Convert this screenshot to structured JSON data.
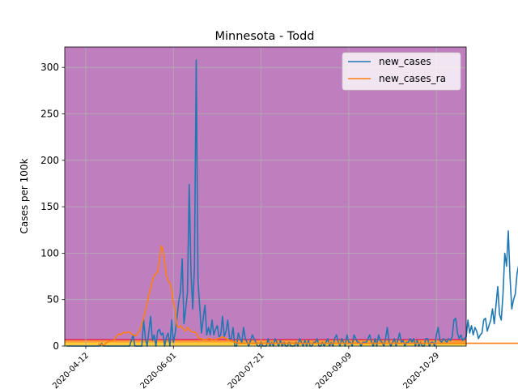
{
  "chart_data": {
    "type": "line",
    "title": "Minnesota - Todd",
    "xlabel": "",
    "ylabel": "Cases per 100k",
    "x_start": "2020-03-31",
    "x_end": "2020-11-15",
    "xlim": [
      "2020-03-31",
      "2020-11-15"
    ],
    "ylim": [
      0,
      322
    ],
    "x_ticks": [
      "2020-04-12",
      "2020-06-01",
      "2020-07-21",
      "2020-09-09",
      "2020-10-29"
    ],
    "y_ticks": [
      0,
      50,
      100,
      150,
      200,
      250,
      300
    ],
    "grid": true,
    "legend_position": "top-right",
    "background_color": "#bf7fbf",
    "risk_bands": [
      {
        "from": 0,
        "to": 1,
        "color": "#ffff66"
      },
      {
        "from": 1,
        "to": 4,
        "color": "#ffcc33"
      },
      {
        "from": 4,
        "to": 7,
        "color": "#ff9933"
      }
    ],
    "threshold_line": {
      "value": 7,
      "color": "#e0245e"
    },
    "series": [
      {
        "name": "new_cases",
        "color": "#1f77b4",
        "start_date": "2020-04-01",
        "values": [
          0,
          0,
          0,
          0,
          0,
          0,
          0,
          0,
          0,
          0,
          0,
          0,
          0,
          0,
          0,
          0,
          0,
          0,
          0,
          0,
          3,
          0,
          0,
          0,
          0,
          0,
          0,
          0,
          0,
          0,
          0,
          0,
          0,
          0,
          0,
          0,
          0,
          6,
          12,
          0,
          0,
          0,
          0,
          0,
          28,
          8,
          0,
          16,
          32,
          6,
          12,
          0,
          16,
          18,
          12,
          14,
          0,
          10,
          14,
          0,
          28,
          4,
          14,
          30,
          48,
          58,
          94,
          24,
          40,
          58,
          174,
          80,
          40,
          86,
          308,
          70,
          42,
          14,
          30,
          44,
          12,
          20,
          12,
          28,
          12,
          18,
          22,
          10,
          12,
          32,
          10,
          16,
          28,
          8,
          8,
          20,
          0,
          0,
          14,
          8,
          4,
          20,
          8,
          4,
          0,
          6,
          12,
          8,
          4,
          0,
          0,
          4,
          0,
          0,
          0,
          8,
          0,
          4,
          0,
          8,
          4,
          0,
          6,
          0,
          4,
          0,
          0,
          4,
          0,
          0,
          0,
          4,
          0,
          8,
          4,
          0,
          6,
          0,
          6,
          0,
          0,
          4,
          4,
          8,
          0,
          0,
          4,
          0,
          4,
          8,
          0,
          4,
          0,
          8,
          12,
          4,
          0,
          8,
          4,
          0,
          12,
          4,
          4,
          0,
          12,
          8,
          4,
          4,
          0,
          4,
          4,
          4,
          8,
          12,
          4,
          0,
          8,
          0,
          12,
          6,
          4,
          0,
          8,
          20,
          4,
          0,
          4,
          8,
          0,
          6,
          14,
          4,
          6,
          0,
          4,
          4,
          8,
          4,
          8,
          0,
          6,
          0,
          4,
          0,
          0,
          8,
          8,
          0,
          4,
          4,
          0,
          12,
          20,
          6,
          4,
          8,
          6,
          4,
          8,
          6,
          10,
          28,
          30,
          14,
          8,
          12,
          6,
          8,
          10,
          28,
          14,
          22,
          12,
          20,
          16,
          8,
          12,
          14,
          28,
          30,
          16,
          22,
          28,
          40,
          24,
          44,
          64,
          34,
          28,
          56,
          100,
          86,
          124,
          74,
          40,
          50,
          56,
          78,
          88,
          74,
          58,
          64,
          158,
          40,
          64,
          128,
          156,
          82,
          80,
          104,
          128,
          96,
          30,
          58,
          140,
          158,
          112,
          162,
          100,
          98,
          100,
          110
        ]
      },
      {
        "name": "new_cases_ra",
        "color": "#ff7f0e",
        "start_date": "2020-04-19",
        "values": [
          2,
          2,
          2,
          1,
          2,
          4,
          5,
          6,
          6,
          6,
          9,
          12,
          13,
          12,
          14,
          15,
          14,
          15,
          15,
          13,
          12,
          11,
          12,
          14,
          18,
          24,
          30,
          38,
          46,
          56,
          62,
          70,
          76,
          78,
          80,
          92,
          108,
          104,
          90,
          76,
          70,
          68,
          60,
          46,
          40,
          22,
          20,
          22,
          20,
          18,
          16,
          20,
          18,
          16,
          15,
          15,
          14,
          10,
          8,
          8,
          7,
          7,
          7,
          8,
          8,
          7,
          6,
          7,
          8,
          8,
          9,
          10,
          9,
          8,
          7,
          6,
          6,
          5,
          4,
          4,
          3,
          3,
          3,
          3,
          3,
          3,
          3,
          3,
          3,
          3,
          3,
          3,
          3,
          3,
          3,
          3,
          3,
          3,
          3,
          3,
          3,
          3,
          3,
          3,
          3,
          3,
          3,
          3,
          3,
          3,
          3,
          3,
          3,
          3,
          3,
          3,
          3,
          3,
          3,
          3,
          3,
          3,
          3,
          3,
          3,
          3,
          3,
          3,
          3,
          3,
          3,
          3,
          3,
          3,
          3,
          3,
          3,
          3,
          3,
          3,
          3,
          3,
          3,
          3,
          3,
          3,
          3,
          3,
          3,
          3,
          3,
          3,
          3,
          3,
          3,
          3,
          3,
          3,
          3,
          3,
          3,
          3,
          3,
          3,
          3,
          3,
          3,
          3,
          3,
          3,
          3,
          3,
          3,
          3,
          3,
          3,
          3,
          3,
          3,
          3,
          3,
          3,
          3,
          3,
          3,
          3,
          3,
          3,
          3,
          3,
          3,
          3,
          3,
          3,
          3,
          3,
          3,
          3,
          3,
          3,
          3,
          3,
          3,
          3,
          3,
          3,
          3,
          3,
          3,
          3,
          3,
          3,
          3,
          3,
          3,
          3,
          3,
          3,
          3,
          3,
          3,
          3,
          3,
          3,
          3,
          3,
          3,
          3,
          3,
          3,
          3,
          3,
          3,
          3,
          3,
          3,
          3,
          3,
          3,
          3,
          3,
          3,
          3,
          3,
          3,
          3,
          3,
          3,
          3,
          3,
          3,
          3
        ]
      }
    ]
  }
}
